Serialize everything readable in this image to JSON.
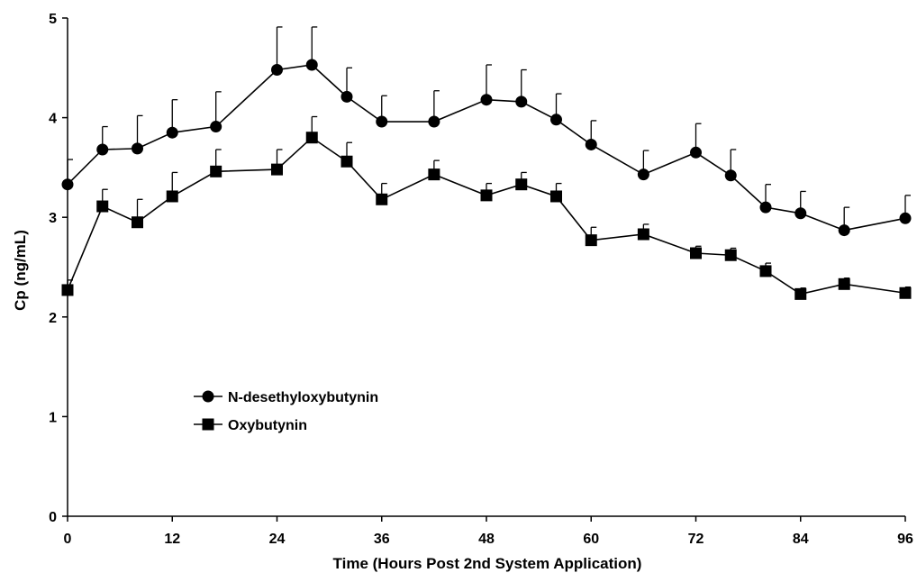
{
  "chart_data": {
    "type": "line",
    "title": "",
    "xlabel": "Time (Hours Post 2nd System Application)",
    "ylabel": "Cp (ng/mL)",
    "xlim": [
      0,
      96
    ],
    "ylim": [
      0,
      5
    ],
    "xticks": [
      0,
      12,
      24,
      36,
      48,
      60,
      72,
      84,
      96
    ],
    "yticks": [
      0,
      1,
      2,
      3,
      4,
      5
    ],
    "grid": false,
    "legend_position": "center-left",
    "series": [
      {
        "name": "N-desethyloxybutynin",
        "marker": "circle",
        "color": "#000000",
        "x": [
          0,
          4,
          8,
          12,
          17,
          24,
          28,
          32,
          36,
          42,
          48,
          52,
          56,
          60,
          66,
          72,
          76,
          80,
          84,
          89,
          96
        ],
        "y": [
          3.33,
          3.68,
          3.69,
          3.85,
          3.91,
          4.48,
          4.53,
          4.21,
          3.96,
          3.96,
          4.18,
          4.16,
          3.98,
          3.73,
          3.43,
          3.65,
          3.42,
          3.1,
          3.04,
          2.87,
          2.99
        ],
        "error": [
          0.25,
          0.23,
          0.33,
          0.33,
          0.35,
          0.43,
          0.38,
          0.29,
          0.26,
          0.31,
          0.35,
          0.32,
          0.26,
          0.24,
          0.24,
          0.29,
          0.26,
          0.23,
          0.22,
          0.23,
          0.23
        ]
      },
      {
        "name": "Oxybutynin",
        "marker": "square",
        "color": "#000000",
        "x": [
          0,
          4,
          8,
          12,
          17,
          24,
          28,
          32,
          36,
          42,
          48,
          52,
          56,
          60,
          66,
          72,
          76,
          80,
          84,
          89,
          96
        ],
        "y": [
          2.27,
          3.11,
          2.95,
          3.21,
          3.46,
          3.48,
          3.8,
          3.56,
          3.18,
          3.43,
          3.22,
          3.33,
          3.21,
          2.77,
          2.83,
          2.64,
          2.62,
          2.46,
          2.23,
          2.33,
          2.24
        ],
        "error": [
          0.1,
          0.17,
          0.23,
          0.24,
          0.22,
          0.2,
          0.21,
          0.19,
          0.16,
          0.14,
          0.12,
          0.12,
          0.13,
          0.13,
          0.1,
          0.07,
          0.07,
          0.08,
          0.06,
          0.06,
          0.06
        ]
      }
    ]
  }
}
